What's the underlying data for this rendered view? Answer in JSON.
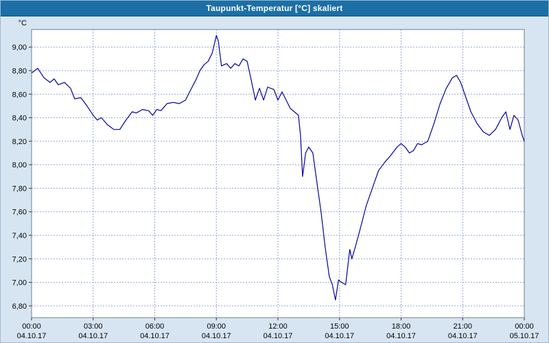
{
  "window": {
    "title": "Taupunkt-Temperatur [&deg;C] skaliert"
  },
  "chart_data": {
    "type": "line",
    "title": "Taupunkt-Temperatur [°C] skaliert",
    "unit_label": "°C",
    "xlabel": "",
    "ylabel": "°C",
    "ylim": [
      6.7,
      9.15
    ],
    "xlim_hours": [
      0,
      24
    ],
    "grid": true,
    "legend": "none",
    "line_color": "#0000a0",
    "grid_color": "#8fa3d9",
    "plot_bg": "#ffffff",
    "outer_bg": "#d7e5f2",
    "titlebar_color": "#1c6fa5",
    "y_ticks": [
      6.8,
      7.0,
      7.2,
      7.4,
      7.6,
      7.8,
      8.0,
      8.2,
      8.4,
      8.6,
      8.8,
      9.0
    ],
    "x_ticks": [
      {
        "hour": 0,
        "time": "00:00",
        "date": "04.10.17"
      },
      {
        "hour": 3,
        "time": "03:00",
        "date": "04.10.17"
      },
      {
        "hour": 6,
        "time": "06:00",
        "date": "04.10.17"
      },
      {
        "hour": 9,
        "time": "09:00",
        "date": "04.10.17"
      },
      {
        "hour": 12,
        "time": "12:00",
        "date": "04.10.17"
      },
      {
        "hour": 15,
        "time": "15:00",
        "date": "04.10.17"
      },
      {
        "hour": 18,
        "time": "18:00",
        "date": "04.10.17"
      },
      {
        "hour": 21,
        "time": "21:00",
        "date": "04.10.17"
      },
      {
        "hour": 24,
        "time": "00:00",
        "date": "05.10.17"
      }
    ],
    "series": [
      {
        "name": "Taupunkt-Temperatur",
        "x": [
          0,
          0.3,
          0.6,
          0.9,
          1.1,
          1.3,
          1.6,
          1.9,
          2.1,
          2.4,
          2.7,
          3.0,
          3.2,
          3.4,
          3.7,
          4.0,
          4.3,
          4.6,
          4.9,
          5.1,
          5.4,
          5.7,
          5.9,
          6.1,
          6.3,
          6.6,
          6.9,
          7.2,
          7.5,
          7.7,
          8.0,
          8.2,
          8.4,
          8.6,
          8.8,
          9.0,
          9.1,
          9.25,
          9.5,
          9.7,
          9.9,
          10.1,
          10.3,
          10.5,
          10.7,
          10.9,
          11.1,
          11.3,
          11.5,
          11.8,
          12.0,
          12.2,
          12.4,
          12.6,
          12.8,
          13.0,
          13.1,
          13.2,
          13.35,
          13.5,
          13.7,
          13.9,
          14.1,
          14.3,
          14.5,
          14.65,
          14.8,
          14.95,
          15.1,
          15.3,
          15.5,
          15.6,
          15.8,
          16.0,
          16.3,
          16.6,
          16.9,
          17.2,
          17.5,
          17.8,
          18.0,
          18.2,
          18.4,
          18.6,
          18.8,
          19.0,
          19.3,
          19.6,
          19.9,
          20.2,
          20.5,
          20.7,
          20.9,
          21.1,
          21.4,
          21.7,
          22.0,
          22.3,
          22.6,
          22.9,
          23.1,
          23.3,
          23.5,
          23.7,
          23.9,
          24.0
        ],
        "y": [
          8.78,
          8.82,
          8.74,
          8.7,
          8.73,
          8.68,
          8.7,
          8.65,
          8.56,
          8.57,
          8.5,
          8.42,
          8.38,
          8.4,
          8.34,
          8.3,
          8.3,
          8.38,
          8.45,
          8.44,
          8.47,
          8.46,
          8.42,
          8.47,
          8.46,
          8.52,
          8.53,
          8.52,
          8.55,
          8.62,
          8.72,
          8.8,
          8.85,
          8.88,
          8.95,
          9.1,
          9.05,
          8.84,
          8.86,
          8.82,
          8.86,
          8.84,
          8.9,
          8.88,
          8.72,
          8.55,
          8.65,
          8.55,
          8.66,
          8.64,
          8.55,
          8.62,
          8.55,
          8.48,
          8.45,
          8.42,
          8.25,
          7.9,
          8.1,
          8.15,
          8.1,
          7.85,
          7.6,
          7.3,
          7.05,
          6.98,
          6.85,
          7.02,
          7.0,
          6.98,
          7.28,
          7.2,
          7.32,
          7.45,
          7.65,
          7.8,
          7.95,
          8.02,
          8.08,
          8.15,
          8.18,
          8.15,
          8.1,
          8.12,
          8.18,
          8.17,
          8.2,
          8.35,
          8.52,
          8.65,
          8.74,
          8.76,
          8.7,
          8.6,
          8.45,
          8.35,
          8.28,
          8.25,
          8.3,
          8.4,
          8.45,
          8.3,
          8.42,
          8.38,
          8.25,
          8.2
        ]
      }
    ]
  }
}
